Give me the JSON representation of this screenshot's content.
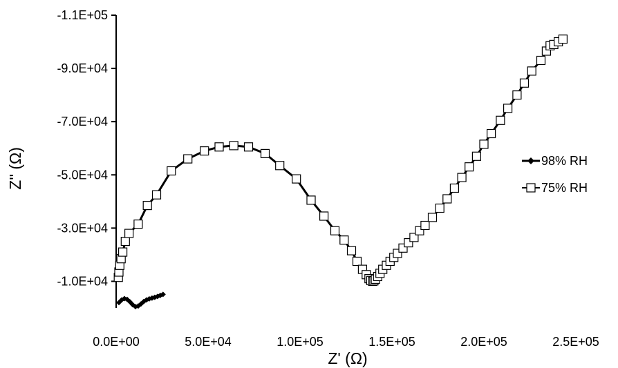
{
  "chart_data": {
    "type": "scatter",
    "title": "",
    "xlabel": "Z' (Ω)",
    "ylabel": "Z'' (Ω)",
    "xlim": [
      0,
      250000
    ],
    "ylim": [
      0,
      -110000
    ],
    "x_ticks": [
      "0.0E+00",
      "5.0E+04",
      "1.0E+05",
      "1.5E+05",
      "2.0E+05",
      "2.5E+05"
    ],
    "y_ticks": [
      "-1.0E+04",
      "-3.0E+04",
      "-5.0E+04",
      "-7.0E+04",
      "-9.0E+04",
      "-1.1E+05"
    ],
    "x_tick_values": [
      0,
      50000,
      100000,
      150000,
      200000,
      250000
    ],
    "y_tick_values": [
      -10000,
      -30000,
      -50000,
      -70000,
      -90000,
      -110000
    ],
    "grid": false,
    "legend_position": "right",
    "series": [
      {
        "name": "98% RH",
        "marker": "diamond-filled",
        "color": "#000000",
        "x": [
          1500,
          3000,
          4500,
          6000,
          7500,
          9000,
          10500,
          12000,
          13500,
          15000,
          16500,
          18000,
          19500,
          21000,
          22500,
          24000,
          25500
        ],
        "y": [
          -2000,
          -3000,
          -3500,
          -3200,
          -2300,
          -1200,
          -500,
          -700,
          -1500,
          -2400,
          -3000,
          -3400,
          -3700,
          -4000,
          -4300,
          -4700,
          -5100
        ]
      },
      {
        "name": "75% RH",
        "marker": "square-open",
        "color": "#000000",
        "x": [
          1200,
          1500,
          2000,
          2700,
          3600,
          5000,
          7000,
          12000,
          17000,
          22000,
          30000,
          39000,
          48000,
          56000,
          64000,
          72000,
          81000,
          89000,
          98000,
          106000,
          113000,
          119000,
          124000,
          128000,
          131000,
          134000,
          136000,
          137500,
          138500,
          139500,
          140200,
          141000,
          142200,
          143500,
          145000,
          147000,
          149000,
          151000,
          153000,
          156000,
          159000,
          162000,
          165000,
          168000,
          172000,
          176000,
          180000,
          184000,
          188000,
          192000,
          196000,
          200000,
          204000,
          209000,
          213000,
          218000,
          222000,
          226000,
          231000,
          234000,
          236000,
          238000,
          240500,
          243000
        ],
        "y": [
          -11500,
          -13500,
          -16000,
          -18500,
          -21000,
          -25000,
          -28000,
          -31500,
          -38500,
          -42500,
          -51500,
          -56000,
          -59000,
          -60500,
          -61000,
          -60500,
          -58000,
          -53500,
          -48500,
          -40500,
          -34500,
          -29000,
          -25500,
          -21500,
          -17500,
          -14500,
          -12500,
          -11000,
          -10300,
          -10000,
          -10200,
          -10800,
          -11800,
          -13000,
          -14500,
          -16000,
          -17500,
          -19000,
          -20500,
          -22500,
          -24500,
          -26500,
          -29000,
          -31000,
          -34000,
          -37500,
          -41000,
          -45000,
          -49000,
          -53000,
          -57000,
          -61500,
          -65500,
          -70500,
          -75000,
          -80000,
          -84500,
          -89000,
          -93000,
          -96500,
          -98500,
          -99000,
          -100000,
          -101000
        ]
      }
    ]
  }
}
